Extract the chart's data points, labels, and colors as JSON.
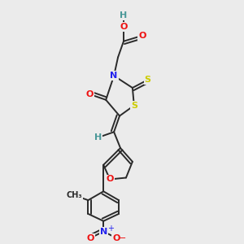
{
  "background_color": "#ebebeb",
  "figsize": [
    3.0,
    3.0
  ],
  "dpi": 100,
  "bond_color": "#2a2a2a",
  "bond_lw": 1.4,
  "bg": "#ebebeb",
  "colors": {
    "H": "#4a9898",
    "O": "#ee1111",
    "N": "#2222ee",
    "S": "#cccc00",
    "C": "#2a2a2a"
  }
}
